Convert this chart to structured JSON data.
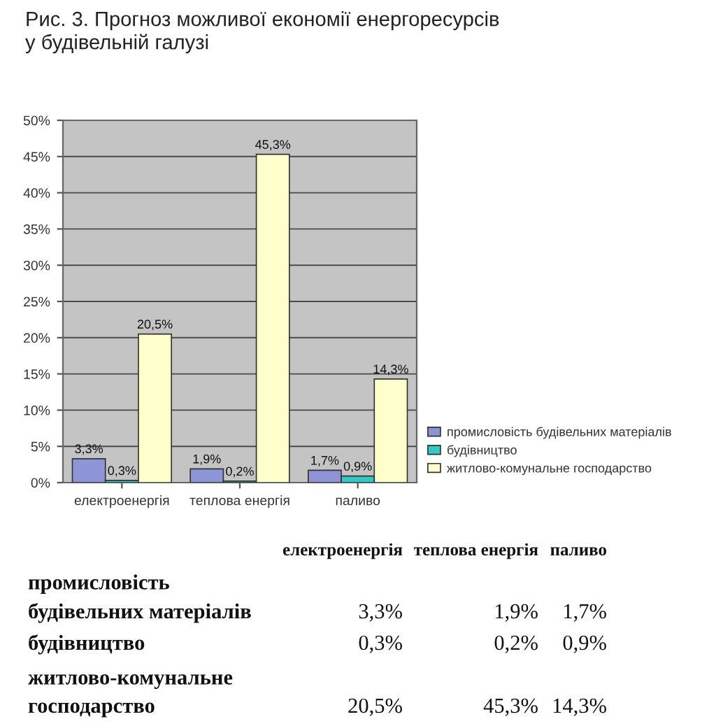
{
  "chart_data": {
    "type": "bar",
    "title": "Рис. 3. Прогноз можливої економії енергоресурсів\nу будівельній галузі",
    "categories": [
      "електроенергія",
      "теплова енергія",
      "паливо"
    ],
    "series": [
      {
        "name": "промисловість будівельних матеріалів",
        "color": "#8d95d6",
        "values": [
          3.3,
          1.9,
          1.7
        ],
        "value_labels": [
          "3,3%",
          "1,9%",
          "1,7%"
        ]
      },
      {
        "name": "будівництво",
        "color": "#33c9c6",
        "values": [
          0.3,
          0.2,
          0.9
        ],
        "value_labels": [
          "0,3%",
          "0,2%",
          "0,9%"
        ]
      },
      {
        "name": "житлово-комунальне господарство",
        "color": "#ffffcc",
        "values": [
          20.5,
          45.3,
          14.3
        ],
        "value_labels": [
          "20,5%",
          "45,3%",
          "14,3%"
        ]
      }
    ],
    "ylim": [
      0,
      50
    ],
    "yticks": [
      {
        "value": 0,
        "label": "0%"
      },
      {
        "value": 5,
        "label": "5%"
      },
      {
        "value": 10,
        "label": "10%"
      },
      {
        "value": 15,
        "label": "15%"
      },
      {
        "value": 20,
        "label": "20%"
      },
      {
        "value": 25,
        "label": "25%"
      },
      {
        "value": 30,
        "label": "30%"
      },
      {
        "value": 35,
        "label": "35%"
      },
      {
        "value": 40,
        "label": "40%"
      },
      {
        "value": 45,
        "label": "45%"
      },
      {
        "value": 50,
        "label": "50%"
      }
    ],
    "grid": "y",
    "legend": "right"
  }
}
